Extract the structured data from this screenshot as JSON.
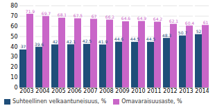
{
  "chart_data": {
    "type": "bar",
    "categories": [
      "2003",
      "2004",
      "2005",
      "2006",
      "2007",
      "2008",
      "2009",
      "2010",
      "2011",
      "2012",
      "2013",
      "2014"
    ],
    "series": [
      {
        "name": "Suhteellinen velkaantuneisuus, %",
        "color": "#1F4E79",
        "values": [
          37,
          39.6,
          42,
          42.1,
          42.5,
          41.9,
          44.6,
          44.5,
          44.5,
          48.3,
          50.7,
          52
        ]
      },
      {
        "name": "Omavaraisuusaste, %",
        "color": "#C966C8",
        "values": [
          71.9,
          69.7,
          68.1,
          67.5,
          67,
          66.2,
          64.6,
          64.9,
          64.2,
          62.1,
          60.4,
          61
        ]
      }
    ],
    "ylim": [
      0,
      80
    ],
    "yticks": [
      0,
      10,
      20,
      30,
      40,
      50,
      60,
      70,
      80
    ],
    "grid": true,
    "data_labels": true,
    "legend": "bottom"
  }
}
